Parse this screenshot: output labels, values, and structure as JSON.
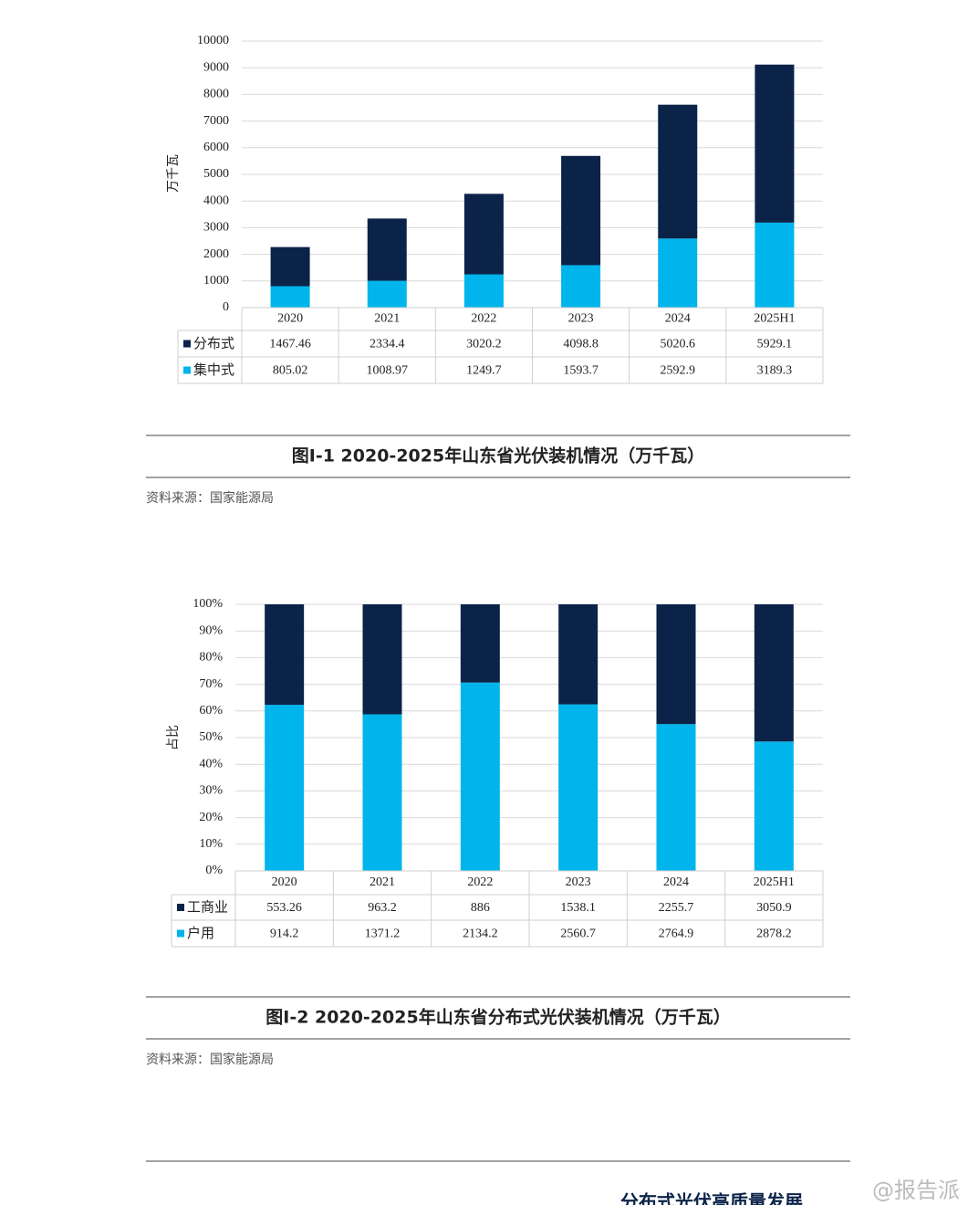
{
  "chart_data": [
    {
      "type": "bar",
      "stacked": "stack",
      "title": "图I-1  2020-2025年山东省光伏装机情况（万千瓦）",
      "source": "资料来源：国家能源局",
      "y_label": "万千瓦",
      "categories": [
        "2020",
        "2021",
        "2022",
        "2023",
        "2024",
        "2025H1"
      ],
      "series": [
        {
          "name": "分布式",
          "color": "#0b2348",
          "values": [
            1467.46,
            2334.4,
            3020.2,
            4098.8,
            5020.6,
            5929.1
          ]
        },
        {
          "name": "集中式",
          "color": "#00b4ec",
          "values": [
            805.02,
            1008.97,
            1249.7,
            1593.7,
            2592.9,
            3189.3
          ]
        }
      ],
      "ylim": [
        0,
        10000
      ],
      "yticks": [
        0,
        1000,
        2000,
        3000,
        4000,
        5000,
        6000,
        7000,
        8000,
        9000,
        10000
      ],
      "grid": true
    },
    {
      "type": "bar",
      "stacked": "percent",
      "title": "图I-2  2020-2025年山东省分布式光伏装机情况（万千瓦）",
      "source": "资料来源：国家能源局",
      "y_label": "占比",
      "categories": [
        "2020",
        "2021",
        "2022",
        "2023",
        "2024",
        "2025H1"
      ],
      "series": [
        {
          "name": "工商业",
          "color": "#0b2348",
          "values": [
            553.26,
            963.2,
            886,
            1538.1,
            2255.7,
            3050.9
          ]
        },
        {
          "name": "户用",
          "color": "#00b4ec",
          "values": [
            914.2,
            1371.2,
            2134.2,
            2560.7,
            2764.9,
            2878.2
          ]
        }
      ],
      "ylim": [
        0,
        100
      ],
      "yticks": [
        {
          "value": 0,
          "label": "0%"
        },
        {
          "value": 10,
          "label": "10%"
        },
        {
          "value": 20,
          "label": "20%"
        },
        {
          "value": 30,
          "label": "30%"
        },
        {
          "value": 40,
          "label": "40%"
        },
        {
          "value": 50,
          "label": "50%"
        },
        {
          "value": 60,
          "label": "60%"
        },
        {
          "value": 70,
          "label": "70%"
        },
        {
          "value": 80,
          "label": "80%"
        },
        {
          "value": 90,
          "label": "90%"
        },
        {
          "value": 100,
          "label": "100%"
        }
      ],
      "grid": true
    }
  ],
  "footer": "分布式光伏高质量发展",
  "watermark": "@报告派"
}
